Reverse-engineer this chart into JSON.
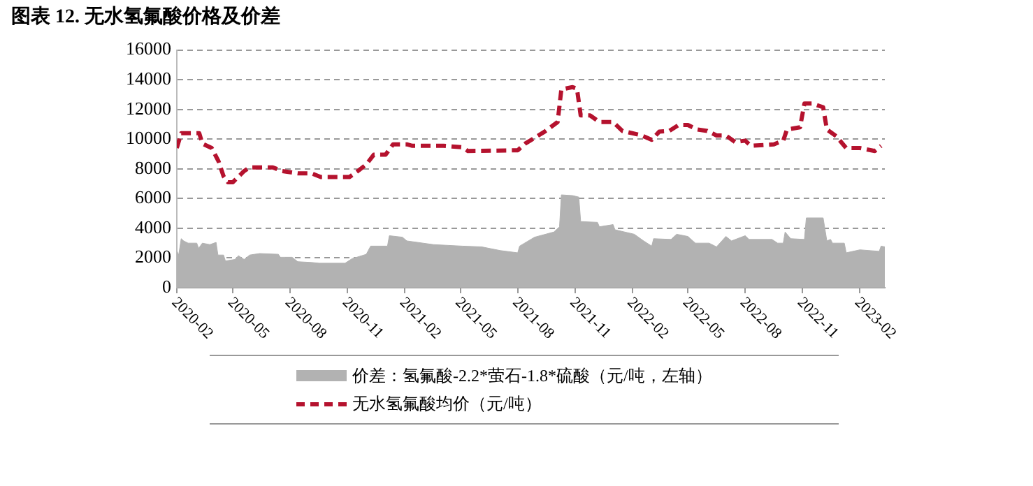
{
  "chart_data": {
    "type": "area",
    "title": "图表 12. 无水氢氟酸价格及价差",
    "xlim": [
      "2020-02-01",
      "2023-03-13"
    ],
    "xticks": [
      "2020-02",
      "2020-05",
      "2020-08",
      "2020-11",
      "2021-02",
      "2021-05",
      "2021-08",
      "2021-11",
      "2022-02",
      "2022-05",
      "2022-08",
      "2022-11",
      "2023-02"
    ],
    "ylim": [
      0,
      16000
    ],
    "yticks": [
      0,
      2000,
      4000,
      6000,
      8000,
      10000,
      12000,
      14000,
      16000
    ],
    "grid": "y",
    "legend": "bottom",
    "line_style": "dashed",
    "series": [
      {
        "name": "价差：氢氟酸-2.2*萤石-1.8*硫酸（元/吨，左轴）",
        "color": "#b2b2b2",
        "x": [
          "2020-02-01",
          "2020-02-04",
          "2020-02-08",
          "2020-02-12",
          "2020-02-19",
          "2020-03-04",
          "2020-03-07",
          "2020-03-13",
          "2020-03-25",
          "2020-04-04",
          "2020-04-07",
          "2020-04-16",
          "2020-04-19",
          "2020-05-04",
          "2020-05-10",
          "2020-05-19",
          "2020-05-28",
          "2020-06-13",
          "2020-07-13",
          "2020-07-16",
          "2020-08-04",
          "2020-08-13",
          "2020-09-04",
          "2020-09-16",
          "2020-10-28",
          "2020-11-08",
          "2020-12-01",
          "2020-12-08",
          "2021-01-04",
          "2021-01-07",
          "2021-01-28",
          "2021-02-04",
          "2021-03-19",
          "2021-05-04",
          "2021-06-04",
          "2021-07-04",
          "2021-08-01",
          "2021-08-04",
          "2021-08-28",
          "2021-09-28",
          "2021-10-07",
          "2021-10-10",
          "2021-10-28",
          "2021-11-07",
          "2021-11-10",
          "2021-12-07",
          "2021-12-10",
          "2022-01-01",
          "2022-01-04",
          "2022-02-04",
          "2022-02-19",
          "2022-03-04",
          "2022-03-07",
          "2022-04-04",
          "2022-04-13",
          "2022-05-01",
          "2022-05-13",
          "2022-06-04",
          "2022-06-16",
          "2022-07-01",
          "2022-07-10",
          "2022-08-01",
          "2022-08-07",
          "2022-09-13",
          "2022-09-22",
          "2022-10-01",
          "2022-10-04",
          "2022-10-13",
          "2022-11-04",
          "2022-11-07",
          "2022-12-04",
          "2022-12-10",
          "2022-12-16",
          "2022-12-19",
          "2023-01-07",
          "2023-01-10",
          "2023-02-01",
          "2023-03-04",
          "2023-03-07",
          "2023-03-13"
        ],
        "values": [
          2500,
          2200,
          3300,
          3150,
          3000,
          3000,
          2650,
          3000,
          2900,
          3050,
          2200,
          2200,
          1800,
          1900,
          2150,
          1900,
          2200,
          2300,
          2250,
          2050,
          2050,
          1750,
          1700,
          1650,
          1650,
          1950,
          2250,
          2800,
          2800,
          3500,
          3400,
          3150,
          2900,
          2800,
          2750,
          2500,
          2350,
          2800,
          3400,
          3750,
          4100,
          6250,
          6200,
          6100,
          4450,
          4400,
          4100,
          4250,
          3900,
          3600,
          3150,
          2800,
          3300,
          3250,
          3600,
          3450,
          3000,
          3000,
          2750,
          3450,
          3150,
          3500,
          3250,
          3250,
          3000,
          3000,
          3750,
          3300,
          3250,
          4700,
          4700,
          3150,
          3250,
          3000,
          3000,
          2350,
          2550,
          2450,
          2800,
          2750
        ]
      },
      {
        "name": "无水氢氟酸均价（元/吨）",
        "type": "line",
        "color": "#b5122e",
        "x": [
          "2020-02-01",
          "2020-02-08",
          "2020-03-08",
          "2020-03-13",
          "2020-03-28",
          "2020-04-08",
          "2020-04-16",
          "2020-04-23",
          "2020-05-01",
          "2020-05-19",
          "2020-05-28",
          "2020-07-04",
          "2020-07-19",
          "2020-08-13",
          "2020-09-04",
          "2020-09-19",
          "2020-11-04",
          "2020-11-19",
          "2020-12-01",
          "2020-12-13",
          "2021-01-01",
          "2021-01-13",
          "2021-02-04",
          "2021-02-13",
          "2021-04-04",
          "2021-05-04",
          "2021-05-13",
          "2021-08-01",
          "2021-08-13",
          "2021-09-13",
          "2021-10-04",
          "2021-10-10",
          "2021-10-28",
          "2021-11-04",
          "2021-11-10",
          "2021-11-25",
          "2021-12-10",
          "2022-01-01",
          "2022-01-16",
          "2022-02-16",
          "2022-03-04",
          "2022-03-16",
          "2022-04-01",
          "2022-04-16",
          "2022-05-01",
          "2022-05-16",
          "2022-06-01",
          "2022-06-16",
          "2022-07-01",
          "2022-07-16",
          "2022-08-01",
          "2022-08-10",
          "2022-09-16",
          "2022-10-01",
          "2022-10-07",
          "2022-10-28",
          "2022-11-04",
          "2022-11-16",
          "2022-12-04",
          "2022-12-10",
          "2022-12-25",
          "2023-01-10",
          "2023-02-01",
          "2023-02-25",
          "2023-03-07"
        ],
        "values": [
          9400,
          10400,
          10400,
          9700,
          9400,
          8500,
          7500,
          7100,
          7100,
          7850,
          8100,
          8100,
          7850,
          7700,
          7700,
          7450,
          7450,
          7900,
          8300,
          8950,
          8950,
          9650,
          9650,
          9550,
          9550,
          9450,
          9200,
          9250,
          9700,
          10500,
          11150,
          13350,
          13500,
          13400,
          11600,
          11600,
          11150,
          11150,
          10550,
          10250,
          9950,
          10500,
          10550,
          10950,
          10950,
          10650,
          10550,
          10250,
          10250,
          9800,
          9900,
          9550,
          9650,
          9900,
          10650,
          10800,
          12400,
          12400,
          12150,
          10650,
          10200,
          9400,
          9400,
          9200,
          9550
        ]
      }
    ]
  }
}
